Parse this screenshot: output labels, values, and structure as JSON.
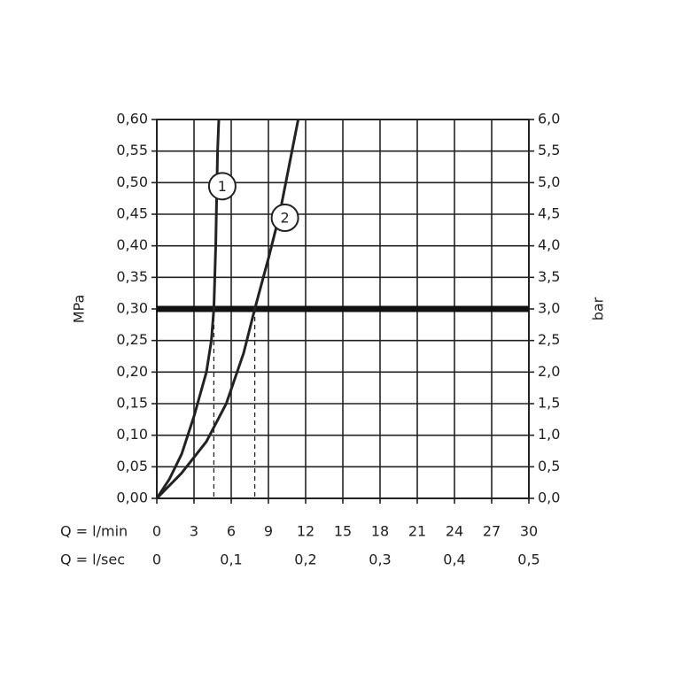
{
  "chart_data": {
    "type": "line",
    "xlabel": "Q = l/min",
    "x2label": "Q = l/sec",
    "ylabel": "MPa",
    "y2label": "bar",
    "xlim": [
      0,
      30
    ],
    "xticks": [
      0,
      3,
      6,
      9,
      12,
      15,
      18,
      21,
      24,
      27,
      30
    ],
    "x2lim": [
      0,
      0.5
    ],
    "x2ticks": [
      0,
      {
        "value": 0.1,
        "label": "0,1"
      },
      {
        "value": 0.2,
        "label": "0,2"
      },
      {
        "value": 0.3,
        "label": "0,3"
      },
      {
        "value": 0.4,
        "label": "0,4"
      },
      {
        "value": 0.5,
        "label": "0,5"
      }
    ],
    "ylim": [
      0,
      0.6
    ],
    "yticks": [
      {
        "value": 0,
        "label": "0,00"
      },
      {
        "value": 0.05,
        "label": "0,05"
      },
      {
        "value": 0.1,
        "label": "0,10"
      },
      {
        "value": 0.15,
        "label": "0,15"
      },
      {
        "value": 0.2,
        "label": "0,20"
      },
      {
        "value": 0.25,
        "label": "0,25"
      },
      {
        "value": 0.3,
        "label": "0,30"
      },
      {
        "value": 0.35,
        "label": "0,35"
      },
      {
        "value": 0.4,
        "label": "0,40"
      },
      {
        "value": 0.45,
        "label": "0,45"
      },
      {
        "value": 0.5,
        "label": "0,50"
      },
      {
        "value": 0.55,
        "label": "0,55"
      },
      {
        "value": 0.6,
        "label": "0,60"
      }
    ],
    "y2lim": [
      0,
      6
    ],
    "y2ticks": [
      {
        "value": 0,
        "label": "0,0"
      },
      {
        "value": 0.5,
        "label": "0,5"
      },
      {
        "value": 1,
        "label": "1,0"
      },
      {
        "value": 1.5,
        "label": "1,5"
      },
      {
        "value": 2,
        "label": "2,0"
      },
      {
        "value": 2.5,
        "label": "2,5"
      },
      {
        "value": 3,
        "label": "3,0"
      },
      {
        "value": 3.5,
        "label": "3,5"
      },
      {
        "value": 4,
        "label": "4,0"
      },
      {
        "value": 4.5,
        "label": "4,5"
      },
      {
        "value": 5,
        "label": "5,0"
      },
      {
        "value": 5.5,
        "label": "5,5"
      },
      {
        "value": 6,
        "label": "6,0"
      }
    ],
    "grid": true,
    "reference_line": 0.3,
    "drop_lines": [
      {
        "x": 4.6,
        "y": 0.3
      },
      {
        "x": 7.9,
        "y": 0.3
      }
    ],
    "series": [
      {
        "name": "1",
        "color": "#222222",
        "x": [
          0,
          1,
          2,
          3,
          4,
          4.4,
          4.6,
          4.75,
          4.85,
          4.9,
          5.0
        ],
        "values": [
          0,
          0.03,
          0.07,
          0.13,
          0.2,
          0.25,
          0.3,
          0.4,
          0.5,
          0.55,
          0.6
        ]
      },
      {
        "name": "2",
        "color": "#222222",
        "x": [
          0,
          2,
          4,
          5.6,
          7,
          7.9,
          9,
          9.9,
          10.7,
          11.4
        ],
        "values": [
          0,
          0.04,
          0.09,
          0.15,
          0.23,
          0.3,
          0.38,
          0.45,
          0.53,
          0.6
        ]
      }
    ]
  }
}
